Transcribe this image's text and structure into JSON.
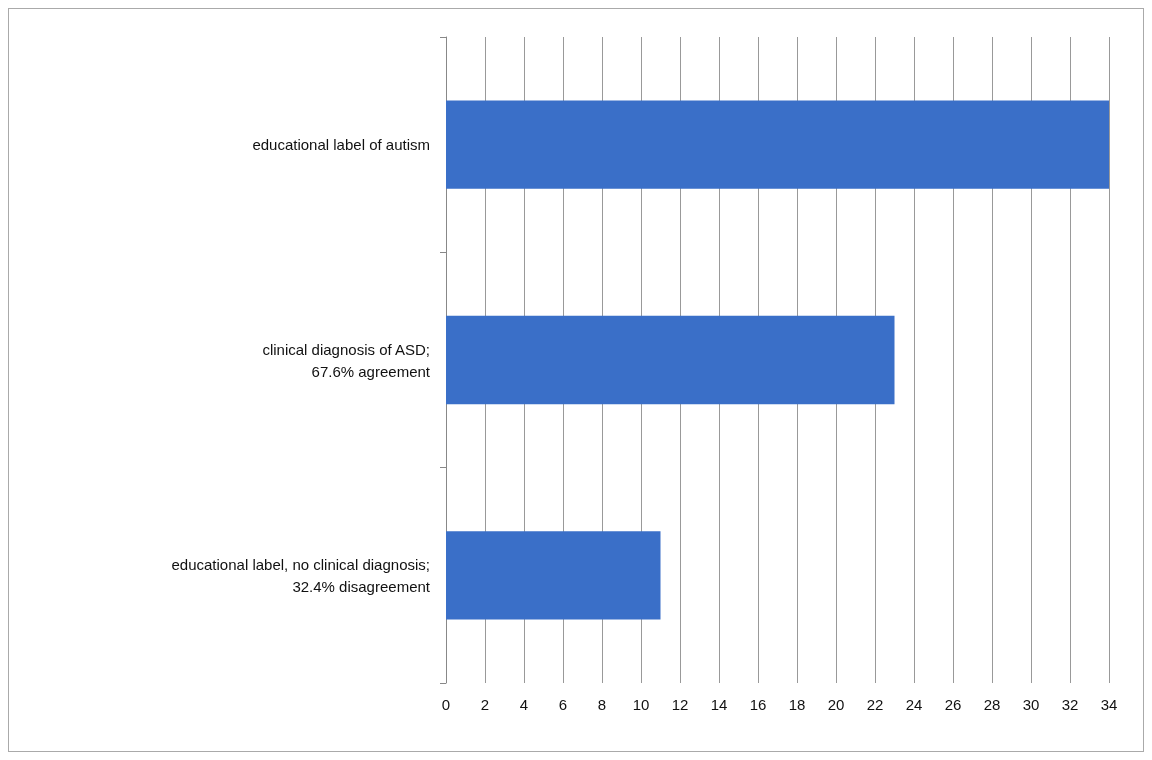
{
  "chart_data": {
    "type": "bar",
    "orientation": "horizontal",
    "categories": [
      "educational label of autism",
      "clinical diagnosis of ASD;\n67.6% agreement",
      "educational label, no clinical diagnosis;\n32.4% disagreement"
    ],
    "values": [
      34,
      23,
      11
    ],
    "color": "#3a6fc8",
    "xlim": [
      0,
      34
    ],
    "xticks": [
      0,
      2,
      4,
      6,
      8,
      10,
      12,
      14,
      16,
      18,
      20,
      22,
      24,
      26,
      28,
      30,
      32,
      34
    ],
    "grid": "x"
  }
}
